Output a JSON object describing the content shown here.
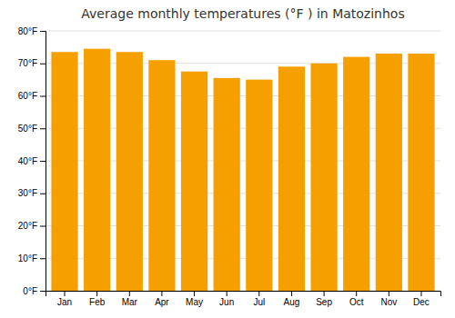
{
  "chart_data": {
    "type": "bar",
    "title": "Average monthly temperatures (°F ) in Matozinhos",
    "categories": [
      "Jan",
      "Feb",
      "Mar",
      "Apr",
      "May",
      "Jun",
      "Jul",
      "Aug",
      "Sep",
      "Oct",
      "Nov",
      "Dec"
    ],
    "values": [
      73.5,
      74.5,
      73.5,
      71.0,
      67.5,
      65.5,
      65.0,
      69.0,
      70.0,
      72.0,
      73.0,
      73.0
    ],
    "color": "#F5A000",
    "ylim": [
      0,
      80
    ],
    "yticks": [
      {
        "value": 0,
        "label": "0°F"
      },
      {
        "value": 10,
        "label": "10°F"
      },
      {
        "value": 20,
        "label": "20°F"
      },
      {
        "value": 30,
        "label": "30°F"
      },
      {
        "value": 40,
        "label": "40°F"
      },
      {
        "value": 50,
        "label": "50°F"
      },
      {
        "value": 60,
        "label": "60°F"
      },
      {
        "value": 70,
        "label": "70°F"
      },
      {
        "value": 80,
        "label": "80°F"
      }
    ],
    "grid": true
  }
}
